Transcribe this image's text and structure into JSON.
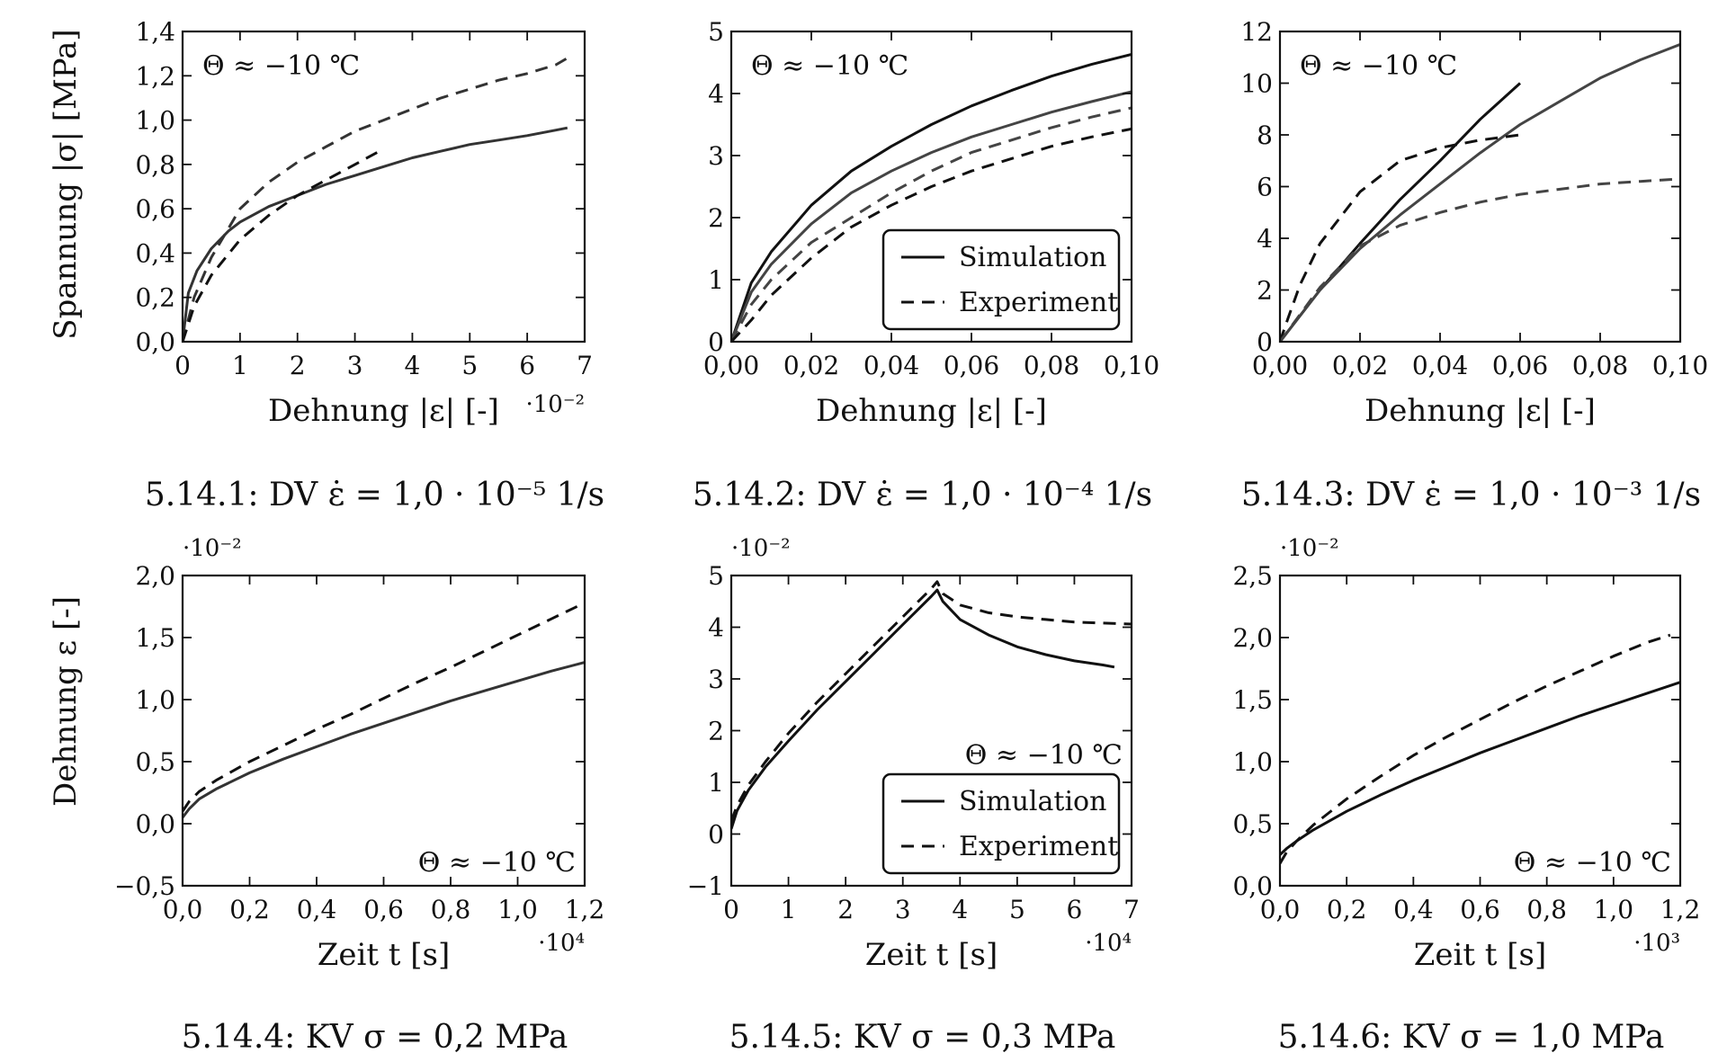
{
  "figure": {
    "y_axis_label_top": "Spannung |σ| [MPa]",
    "y_axis_label_bottom": "Dehnung ε [-]"
  },
  "chart_data": [
    {
      "id": "5.14.1",
      "type": "line",
      "caption": "5.14.1: DV ε̇ = 1,0 · 10⁻⁵ 1/s",
      "xlabel": "Dehnung |ε| [-]",
      "ylabel": "Spannung |σ| [MPa]",
      "x_scale_label": "·10⁻²",
      "xlim": [
        0,
        7
      ],
      "ylim": [
        0,
        1.4
      ],
      "xticks": [
        0,
        1,
        2,
        3,
        4,
        5,
        6,
        7
      ],
      "xtick_labels": [
        "0",
        "1",
        "2",
        "3",
        "4",
        "5",
        "6",
        "7"
      ],
      "yticks": [
        0,
        0.2,
        0.4,
        0.6,
        0.8,
        1.0,
        1.2,
        1.4
      ],
      "ytick_labels": [
        "0,0",
        "0,2",
        "0,4",
        "0,6",
        "0,8",
        "1,0",
        "1,2",
        "1,4"
      ],
      "annotation": "Θ ≈ −10 ℃",
      "annotation_pos": "top-left",
      "series": [
        {
          "style": "solid",
          "color": "#333333",
          "x": [
            0,
            0.1,
            0.25,
            0.5,
            0.8,
            1.0,
            1.5,
            2.0,
            2.5,
            3.0,
            3.5,
            4.0,
            4.5,
            5.0,
            5.5,
            6.0,
            6.5,
            6.7
          ],
          "y": [
            0,
            0.22,
            0.32,
            0.42,
            0.5,
            0.54,
            0.61,
            0.66,
            0.71,
            0.75,
            0.79,
            0.83,
            0.86,
            0.89,
            0.91,
            0.93,
            0.955,
            0.965
          ]
        },
        {
          "style": "dashed",
          "color": "#333333",
          "x": [
            0,
            0.2,
            0.5,
            1.0,
            1.5,
            2.0,
            2.5,
            3.0,
            3.5,
            4.0,
            4.5,
            5.0,
            5.5,
            6.0,
            6.5,
            6.7
          ],
          "y": [
            0,
            0.2,
            0.38,
            0.6,
            0.72,
            0.81,
            0.88,
            0.95,
            1.0,
            1.05,
            1.1,
            1.14,
            1.18,
            1.21,
            1.25,
            1.28
          ]
        },
        {
          "style": "dashed",
          "color": "#111111",
          "x": [
            0,
            0.2,
            0.5,
            1.0,
            1.5,
            2.0,
            2.5,
            3.0,
            3.5
          ],
          "y": [
            0,
            0.16,
            0.3,
            0.46,
            0.57,
            0.66,
            0.73,
            0.8,
            0.87
          ]
        }
      ]
    },
    {
      "id": "5.14.2",
      "type": "line",
      "caption": "5.14.2: DV ε̇ = 1,0 · 10⁻⁴ 1/s",
      "xlabel": "Dehnung |ε| [-]",
      "xlim": [
        0,
        0.1
      ],
      "ylim": [
        0,
        5
      ],
      "xticks": [
        0,
        0.02,
        0.04,
        0.06,
        0.08,
        0.1
      ],
      "xtick_labels": [
        "0,00",
        "0,02",
        "0,04",
        "0,06",
        "0,08",
        "0,10"
      ],
      "yticks": [
        0,
        1,
        2,
        3,
        4,
        5
      ],
      "ytick_labels": [
        "0",
        "1",
        "2",
        "3",
        "4",
        "5"
      ],
      "annotation": "Θ ≈ −10 ℃",
      "annotation_pos": "top-left",
      "legend": {
        "position": "lower-right",
        "entries": [
          "Simulation",
          "Experiment"
        ]
      },
      "series": [
        {
          "style": "solid",
          "color": "#111111",
          "x": [
            0,
            0.005,
            0.01,
            0.02,
            0.03,
            0.04,
            0.05,
            0.06,
            0.07,
            0.08,
            0.09,
            0.1
          ],
          "y": [
            0,
            0.95,
            1.45,
            2.2,
            2.75,
            3.15,
            3.5,
            3.8,
            4.05,
            4.28,
            4.47,
            4.63
          ]
        },
        {
          "style": "solid",
          "color": "#444444",
          "x": [
            0,
            0.005,
            0.01,
            0.02,
            0.03,
            0.04,
            0.05,
            0.06,
            0.07,
            0.08,
            0.09,
            0.1
          ],
          "y": [
            0,
            0.8,
            1.25,
            1.9,
            2.4,
            2.75,
            3.05,
            3.3,
            3.5,
            3.7,
            3.87,
            4.03
          ]
        },
        {
          "style": "dashed",
          "color": "#444444",
          "x": [
            0,
            0.005,
            0.01,
            0.02,
            0.03,
            0.04,
            0.05,
            0.06,
            0.07,
            0.08,
            0.09,
            0.1
          ],
          "y": [
            0,
            0.6,
            1.0,
            1.6,
            2.0,
            2.4,
            2.75,
            3.05,
            3.25,
            3.45,
            3.62,
            3.77
          ]
        },
        {
          "style": "dashed",
          "color": "#111111",
          "x": [
            0,
            0.005,
            0.01,
            0.02,
            0.03,
            0.04,
            0.05,
            0.06,
            0.07,
            0.08,
            0.09,
            0.1
          ],
          "y": [
            0,
            0.35,
            0.75,
            1.35,
            1.85,
            2.2,
            2.5,
            2.75,
            2.95,
            3.15,
            3.3,
            3.43
          ]
        }
      ]
    },
    {
      "id": "5.14.3",
      "type": "line",
      "caption": "5.14.3: DV ε̇ = 1,0 · 10⁻³ 1/s",
      "xlabel": "Dehnung |ε| [-]",
      "xlim": [
        0,
        0.1
      ],
      "ylim": [
        0,
        12
      ],
      "xticks": [
        0,
        0.02,
        0.04,
        0.06,
        0.08,
        0.1
      ],
      "xtick_labels": [
        "0,00",
        "0,02",
        "0,04",
        "0,06",
        "0,08",
        "0,10"
      ],
      "yticks": [
        0,
        2,
        4,
        6,
        8,
        10,
        12
      ],
      "ytick_labels": [
        "0",
        "2",
        "4",
        "6",
        "8",
        "10",
        "12"
      ],
      "annotation": "Θ ≈ −10 ℃",
      "annotation_pos": "top-left",
      "series": [
        {
          "style": "solid",
          "color": "#111111",
          "x": [
            0,
            0.01,
            0.02,
            0.03,
            0.04,
            0.05,
            0.06
          ],
          "y": [
            0,
            2.0,
            3.8,
            5.5,
            7.0,
            8.6,
            10.0
          ]
        },
        {
          "style": "solid",
          "color": "#444444",
          "x": [
            0,
            0.01,
            0.02,
            0.03,
            0.04,
            0.05,
            0.06,
            0.07,
            0.08,
            0.09,
            0.1
          ],
          "y": [
            0,
            2.0,
            3.6,
            4.9,
            6.1,
            7.3,
            8.4,
            9.3,
            10.2,
            10.9,
            11.5
          ]
        },
        {
          "style": "dashed",
          "color": "#111111",
          "x": [
            0,
            0.002,
            0.005,
            0.01,
            0.02,
            0.03,
            0.04,
            0.05,
            0.06
          ],
          "y": [
            0,
            0.9,
            2.2,
            3.8,
            5.8,
            7.0,
            7.5,
            7.8,
            8.0
          ]
        },
        {
          "style": "dashed",
          "color": "#444444",
          "x": [
            0,
            0.01,
            0.02,
            0.03,
            0.04,
            0.05,
            0.06,
            0.07,
            0.08,
            0.09,
            0.1
          ],
          "y": [
            0,
            2.1,
            3.7,
            4.5,
            5.0,
            5.4,
            5.7,
            5.9,
            6.1,
            6.2,
            6.3
          ]
        }
      ]
    },
    {
      "id": "5.14.4",
      "type": "line",
      "caption": "5.14.4: KV σ = 0,2 MPa",
      "xlabel": "Zeit t [s]",
      "ylabel": "Dehnung ε [-]",
      "x_scale_label": "·10⁴",
      "y_scale_label": "·10⁻²",
      "xlim": [
        0,
        1.2
      ],
      "ylim": [
        -0.5,
        2.0
      ],
      "xticks": [
        0,
        0.2,
        0.4,
        0.6,
        0.8,
        1.0,
        1.2
      ],
      "xtick_labels": [
        "0,0",
        "0,2",
        "0,4",
        "0,6",
        "0,8",
        "1,0",
        "1,2"
      ],
      "yticks": [
        -0.5,
        0,
        0.5,
        1.0,
        1.5,
        2.0
      ],
      "ytick_labels": [
        "−0,5",
        "0,0",
        "0,5",
        "1,0",
        "1,5",
        "2,0"
      ],
      "annotation": "Θ ≈ −10 ℃",
      "annotation_pos": "bottom-right",
      "series": [
        {
          "style": "solid",
          "color": "#333333",
          "x": [
            0,
            0.02,
            0.05,
            0.1,
            0.2,
            0.3,
            0.4,
            0.5,
            0.6,
            0.7,
            0.8,
            0.9,
            1.0,
            1.1,
            1.2
          ],
          "y": [
            0.05,
            0.12,
            0.2,
            0.28,
            0.41,
            0.52,
            0.62,
            0.72,
            0.81,
            0.9,
            0.99,
            1.07,
            1.15,
            1.23,
            1.3
          ]
        },
        {
          "style": "dashed",
          "color": "#111111",
          "x": [
            0,
            0.02,
            0.05,
            0.1,
            0.2,
            0.3,
            0.4,
            0.5,
            0.6,
            0.7,
            0.8,
            0.9,
            1.0,
            1.1,
            1.2
          ],
          "y": [
            0.1,
            0.18,
            0.26,
            0.35,
            0.5,
            0.63,
            0.76,
            0.88,
            1.01,
            1.14,
            1.26,
            1.39,
            1.52,
            1.65,
            1.78
          ]
        }
      ]
    },
    {
      "id": "5.14.5",
      "type": "line",
      "caption": "5.14.5: KV σ = 0,3 MPa",
      "xlabel": "Zeit t [s]",
      "x_scale_label": "·10⁴",
      "y_scale_label": "·10⁻²",
      "xlim": [
        0,
        7
      ],
      "ylim": [
        -1,
        5
      ],
      "xticks": [
        0,
        1,
        2,
        3,
        4,
        5,
        6,
        7
      ],
      "xtick_labels": [
        "0",
        "1",
        "2",
        "3",
        "4",
        "5",
        "6",
        "7"
      ],
      "yticks": [
        -1,
        0,
        1,
        2,
        3,
        4,
        5
      ],
      "ytick_labels": [
        "−1",
        "0",
        "1",
        "2",
        "3",
        "4",
        "5"
      ],
      "annotation": "Θ ≈ −10 ℃",
      "annotation_pos": "center-right",
      "legend": {
        "position": "lower-right",
        "entries": [
          "Simulation",
          "Experiment"
        ]
      },
      "series": [
        {
          "style": "solid",
          "color": "#111111",
          "x": [
            0,
            0.1,
            0.3,
            0.6,
            1.0,
            1.5,
            2.0,
            2.5,
            3.0,
            3.5,
            3.6,
            3.7,
            4.0,
            4.5,
            5.0,
            5.5,
            6.0,
            6.5,
            6.7
          ],
          "y": [
            0.1,
            0.45,
            0.85,
            1.3,
            1.8,
            2.4,
            2.95,
            3.5,
            4.05,
            4.6,
            4.72,
            4.5,
            4.15,
            3.85,
            3.62,
            3.47,
            3.35,
            3.27,
            3.23
          ]
        },
        {
          "style": "dashed",
          "color": "#111111",
          "x": [
            0,
            0.1,
            0.3,
            0.6,
            1.0,
            1.5,
            2.0,
            2.5,
            3.0,
            3.5,
            3.6,
            3.7,
            4.0,
            4.5,
            5.0,
            5.5,
            6.0,
            6.5,
            7.0
          ],
          "y": [
            0.25,
            0.55,
            0.95,
            1.4,
            1.95,
            2.55,
            3.1,
            3.65,
            4.2,
            4.75,
            4.88,
            4.65,
            4.43,
            4.28,
            4.2,
            4.15,
            4.1,
            4.08,
            4.06
          ]
        }
      ]
    },
    {
      "id": "5.14.6",
      "type": "line",
      "caption": "5.14.6: KV σ = 1,0 MPa",
      "xlabel": "Zeit t [s]",
      "x_scale_label": "·10³",
      "y_scale_label": "·10⁻²",
      "xlim": [
        0,
        1.2
      ],
      "ylim": [
        0,
        2.5
      ],
      "xticks": [
        0,
        0.2,
        0.4,
        0.6,
        0.8,
        1.0,
        1.2
      ],
      "xtick_labels": [
        "0,0",
        "0,2",
        "0,4",
        "0,6",
        "0,8",
        "1,0",
        "1,2"
      ],
      "yticks": [
        0,
        0.5,
        1.0,
        1.5,
        2.0,
        2.5
      ],
      "ytick_labels": [
        "0,0",
        "0,5",
        "1,0",
        "1,5",
        "2,0",
        "2,5"
      ],
      "annotation": "Θ ≈ −10 ℃",
      "annotation_pos": "bottom-right",
      "series": [
        {
          "style": "solid",
          "color": "#111111",
          "x": [
            0,
            0.02,
            0.05,
            0.1,
            0.2,
            0.3,
            0.4,
            0.5,
            0.6,
            0.7,
            0.8,
            0.9,
            1.0,
            1.1,
            1.2
          ],
          "y": [
            0.25,
            0.3,
            0.36,
            0.45,
            0.6,
            0.73,
            0.85,
            0.96,
            1.07,
            1.17,
            1.27,
            1.37,
            1.46,
            1.55,
            1.64
          ]
        },
        {
          "style": "dashed",
          "color": "#111111",
          "x": [
            0,
            0.02,
            0.05,
            0.1,
            0.2,
            0.3,
            0.4,
            0.5,
            0.6,
            0.7,
            0.8,
            0.9,
            1.0,
            1.1,
            1.17
          ],
          "y": [
            0.18,
            0.27,
            0.36,
            0.49,
            0.7,
            0.88,
            1.05,
            1.2,
            1.34,
            1.48,
            1.61,
            1.73,
            1.85,
            1.96,
            2.02
          ]
        }
      ]
    }
  ]
}
